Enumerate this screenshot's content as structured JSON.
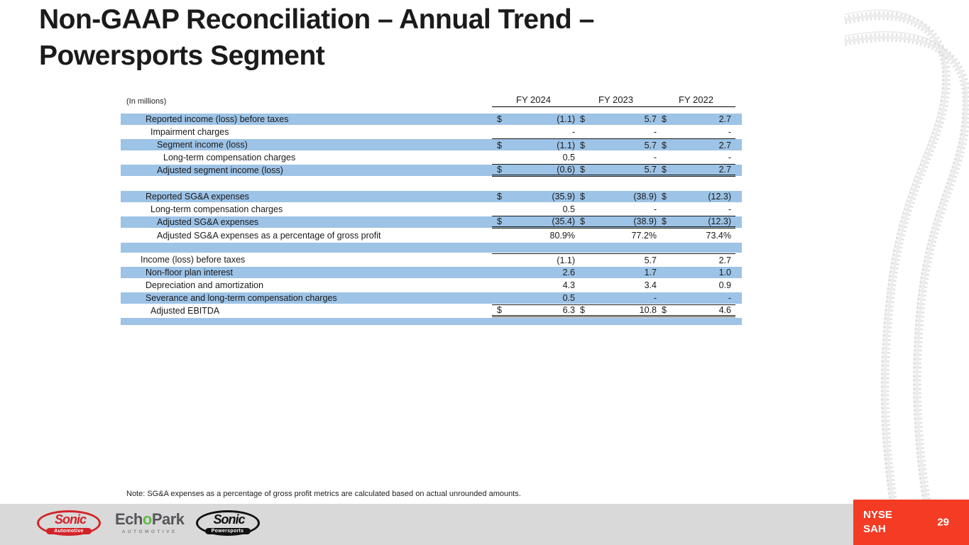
{
  "slide": {
    "title_line1": "Non-GAAP Reconciliation – Annual Trend –",
    "title_line2": "Powersports Segment",
    "note": "Note: SG&A expenses as a percentage of gross profit metrics are calculated based on actual unrounded amounts.",
    "ticker_line1": "NYSE",
    "ticker_line2": "SAH",
    "page_number": "29"
  },
  "table": {
    "units_label": "(In millions)",
    "currency_symbol": "$",
    "columns": [
      "FY 2024",
      "FY 2023",
      "FY 2022"
    ],
    "rows": [
      {
        "label": "Reported income (loss) before taxes",
        "indent": 1,
        "shaded": true,
        "dollar": true,
        "values": [
          "(1.1)",
          "5.7",
          "2.7"
        ]
      },
      {
        "label": "Impairment charges",
        "indent": 2,
        "shaded": false,
        "dollar": false,
        "values": [
          "-",
          "-",
          "-"
        ]
      },
      {
        "label": "Segment income (loss)",
        "indent": 3,
        "shaded": true,
        "dollar": true,
        "values": [
          "(1.1)",
          "5.7",
          "2.7"
        ],
        "rule_above": true
      },
      {
        "label": "Long-term compensation charges",
        "indent": 4,
        "shaded": false,
        "dollar": false,
        "values": [
          "0.5",
          "-",
          "-"
        ]
      },
      {
        "label": "Adjusted segment income (loss)",
        "indent": 3,
        "shaded": true,
        "dollar": true,
        "values": [
          "(0.6)",
          "5.7",
          "2.7"
        ],
        "rule_above": true,
        "double_below": true
      },
      {
        "empty": true,
        "shaded": false,
        "height": 19
      },
      {
        "label": "Reported SG&A expenses",
        "indent": 1,
        "shaded": true,
        "dollar": true,
        "values": [
          "(35.9)",
          "(38.9)",
          "(12.3)"
        ]
      },
      {
        "label": "Long-term compensation charges",
        "indent": 2,
        "shaded": false,
        "dollar": false,
        "values": [
          "0.5",
          "-",
          "-"
        ]
      },
      {
        "label": "Adjusted SG&A expenses",
        "indent": 3,
        "shaded": true,
        "dollar": true,
        "values": [
          "(35.4)",
          "(38.9)",
          "(12.3)"
        ],
        "rule_above": true,
        "double_below": true
      },
      {
        "label": "Adjusted SG&A expenses as a percentage of gross profit",
        "indent": 3,
        "shaded": false,
        "dollar": false,
        "values": [
          "80.9%",
          "77.2%",
          "73.4%"
        ],
        "height": 19
      },
      {
        "empty": true,
        "shaded": true,
        "height": 16
      },
      {
        "label": "Income (loss) before taxes",
        "indent": 0,
        "shaded": false,
        "dollar": false,
        "values": [
          "(1.1)",
          "5.7",
          "2.7"
        ],
        "rule_above": true
      },
      {
        "label": "Non-floor plan interest",
        "indent": 1,
        "shaded": true,
        "dollar": false,
        "values": [
          "2.6",
          "1.7",
          "1.0"
        ]
      },
      {
        "label": "Depreciation and amortization",
        "indent": 1,
        "shaded": false,
        "dollar": false,
        "values": [
          "4.3",
          "3.4",
          "0.9"
        ]
      },
      {
        "label": "Severance and long-term compensation charges",
        "indent": 1,
        "shaded": true,
        "dollar": false,
        "values": [
          "0.5",
          "-",
          "-"
        ]
      },
      {
        "label": "Adjusted EBITDA",
        "indent": 2,
        "shaded": false,
        "dollar": true,
        "values": [
          "6.3",
          "10.8",
          "4.6"
        ],
        "rule_above": true,
        "double_below": true
      },
      {
        "empty": true,
        "shaded": true,
        "height": 12
      }
    ]
  },
  "footer": {
    "logos": {
      "sonic_automotive": {
        "word": "Sonic",
        "sub": "Automotive"
      },
      "echopark": {
        "part1": "Ech",
        "part_o": "o",
        "part2": "Park",
        "sub": "AUTOMOTIVE"
      },
      "sonic_powersports": {
        "word": "Sonic",
        "sub": "Powersports"
      }
    }
  },
  "colors": {
    "row_highlight": "#9DC3E6",
    "ticker_red": "#F43B24",
    "footer_gray": "#D9D9D9",
    "sonic_red": "#D2232A",
    "echopark_green": "#62BB46",
    "logo_black": "#111111"
  }
}
